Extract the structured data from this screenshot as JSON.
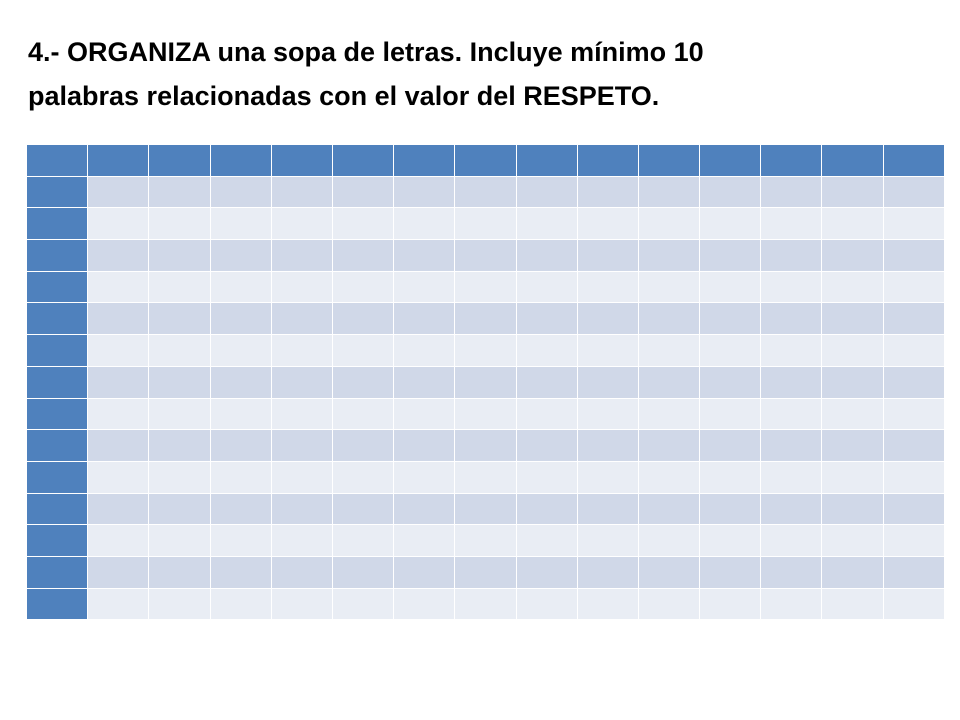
{
  "slide": {
    "title_line1": "4.- ORGANIZA una sopa de letras. Incluye mínimo 10",
    "title_line2": "palabras relacionadas con el valor del RESPETO."
  },
  "table": {
    "columns": 15,
    "body_rows": 14,
    "cells": [],
    "colors": {
      "header": "#4f81bd",
      "row_band_dark": "#d0d8e8",
      "row_band_light": "#e9edf4",
      "grid_lines": "#ffffff"
    }
  }
}
